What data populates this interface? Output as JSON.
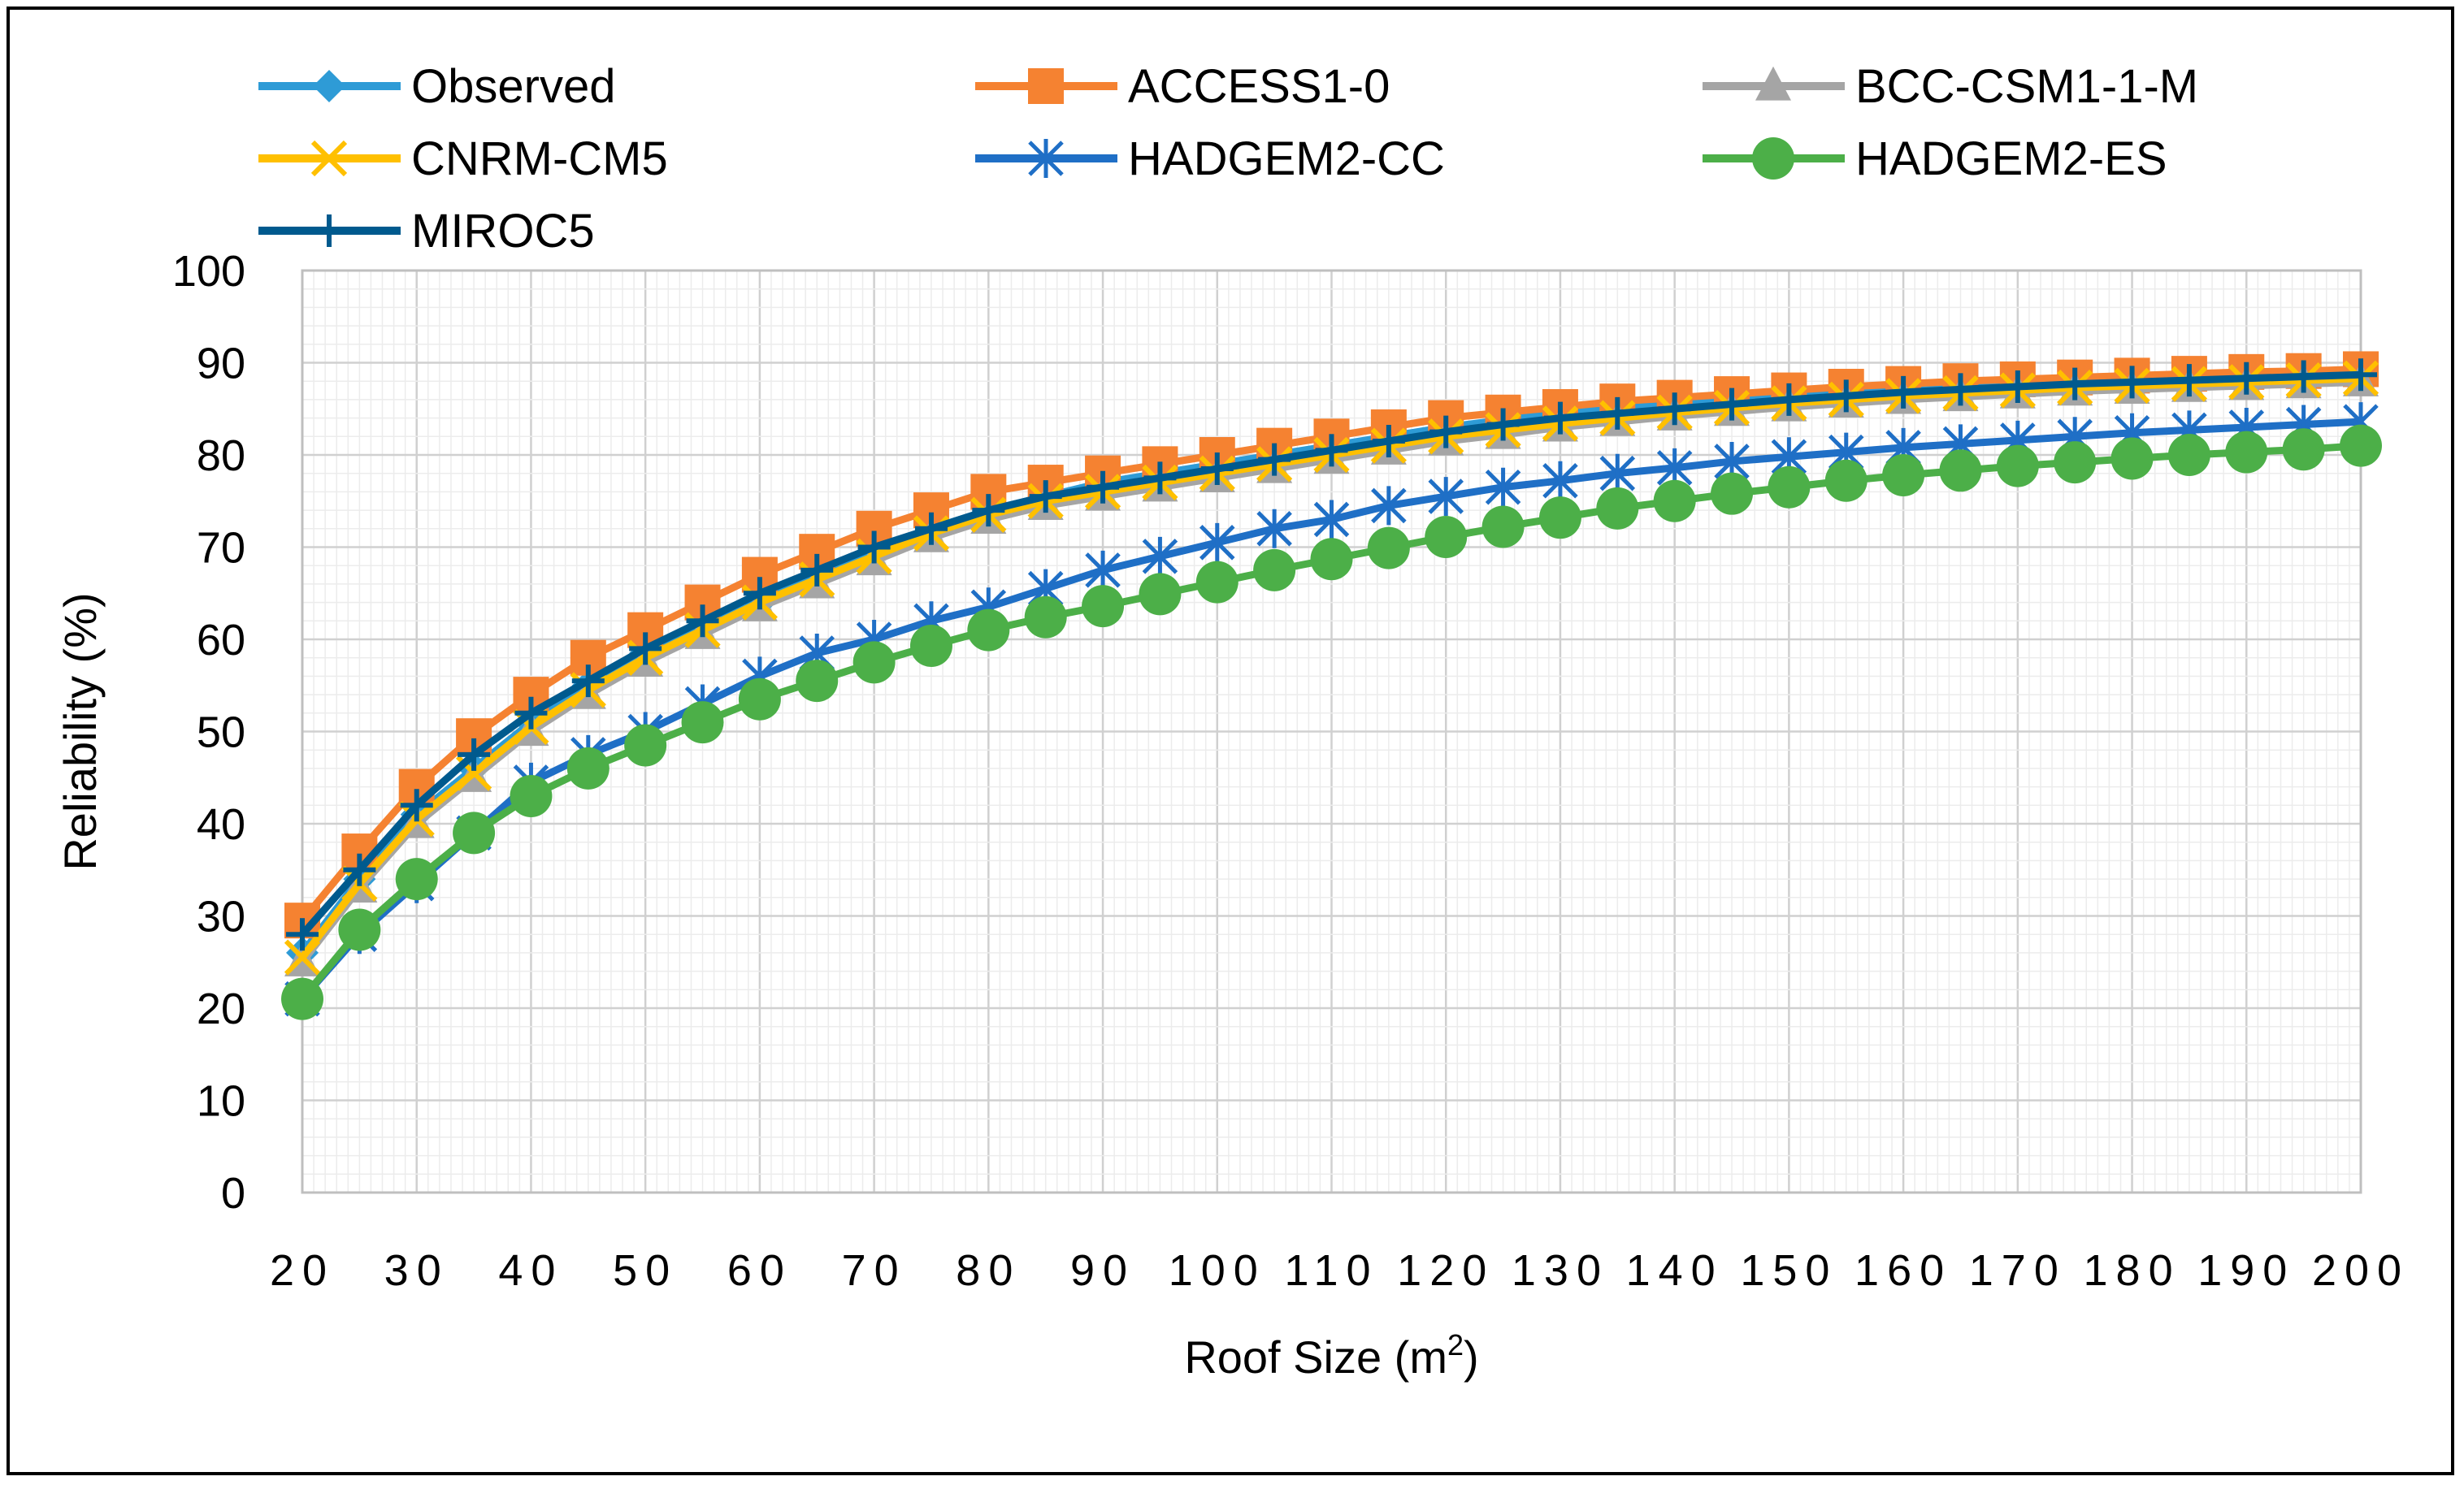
{
  "chart_data": {
    "type": "line",
    "title": "",
    "xlabel": "Roof Size (m",
    "xlabel_sup": "2",
    "xlabel_close": ")",
    "ylabel": "Reliability (%)",
    "xlim": [
      20,
      200
    ],
    "ylim": [
      0,
      100
    ],
    "yticks": [
      0,
      10,
      20,
      30,
      40,
      50,
      60,
      70,
      80,
      90,
      100
    ],
    "xticks": [
      20,
      30,
      40,
      50,
      60,
      70,
      80,
      90,
      100,
      110,
      120,
      130,
      140,
      150,
      160,
      170,
      180,
      190,
      200
    ],
    "grid": true,
    "legend_position": "top",
    "x": [
      20,
      25,
      30,
      35,
      40,
      45,
      50,
      55,
      60,
      65,
      70,
      75,
      80,
      85,
      90,
      95,
      100,
      105,
      110,
      115,
      120,
      125,
      130,
      135,
      140,
      145,
      150,
      155,
      160,
      165,
      170,
      175,
      180,
      185,
      190,
      195,
      200
    ],
    "series": [
      {
        "name": "Observed",
        "color": "#2E9BD6",
        "marker": "diamond",
        "values": [
          26,
          34,
          41,
          46,
          51,
          55,
          58.5,
          61.5,
          64,
          67,
          69.5,
          72,
          74,
          75.5,
          77,
          78,
          79,
          80,
          81,
          82,
          83,
          83.8,
          84.5,
          85,
          85.5,
          86,
          86.4,
          86.8,
          87.2,
          87.5,
          87.8,
          88,
          88.2,
          88.4,
          88.5,
          88.7,
          88.9
        ]
      },
      {
        "name": "ACCESS1-0",
        "color": "#F58231",
        "marker": "square",
        "values": [
          29.5,
          37,
          44,
          49.5,
          54,
          58,
          61,
          64,
          67,
          69.5,
          72,
          74,
          76,
          77,
          78,
          79,
          80,
          81,
          82,
          83,
          84,
          84.6,
          85.2,
          85.8,
          86.2,
          86.6,
          87,
          87.4,
          87.7,
          88,
          88.2,
          88.4,
          88.6,
          88.8,
          89,
          89.1,
          89.3
        ]
      },
      {
        "name": "BCC-CSM1-1-M",
        "color": "#A5A5A5",
        "marker": "triangle",
        "values": [
          25,
          33,
          40,
          45,
          50,
          54,
          57.5,
          60.5,
          63.5,
          66,
          68.5,
          71,
          73,
          74.5,
          75.5,
          76.5,
          77.5,
          78.5,
          79.5,
          80.5,
          81.5,
          82.2,
          83,
          83.6,
          84.2,
          84.7,
          85.2,
          85.6,
          86,
          86.3,
          86.6,
          86.9,
          87.1,
          87.3,
          87.5,
          87.7,
          87.9
        ]
      },
      {
        "name": "CNRM-CM5",
        "color": "#FFC000",
        "marker": "x",
        "values": [
          25.5,
          33.5,
          40.5,
          45.5,
          50.5,
          54.5,
          58,
          61,
          64,
          66.5,
          69,
          71.5,
          73.5,
          75,
          76,
          77,
          78,
          79,
          80,
          81,
          82,
          82.7,
          83.4,
          84,
          84.6,
          85.1,
          85.6,
          86,
          86.4,
          86.7,
          87,
          87.3,
          87.5,
          87.7,
          87.9,
          88.1,
          88.3
        ]
      },
      {
        "name": "HADGEM2-CC",
        "color": "#1F6FC6",
        "marker": "asterisk",
        "values": [
          21,
          28,
          33.5,
          39,
          44.5,
          47.5,
          50,
          53,
          56,
          58.5,
          60,
          62,
          63.5,
          65.5,
          67.5,
          69,
          70.5,
          72,
          73,
          74.5,
          75.5,
          76.5,
          77.2,
          78,
          78.6,
          79.3,
          79.8,
          80.3,
          80.8,
          81.2,
          81.6,
          82,
          82.4,
          82.7,
          83,
          83.3,
          83.6
        ]
      },
      {
        "name": "HADGEM2-ES",
        "color": "#4CAF48",
        "marker": "circle",
        "values": [
          21,
          28.5,
          34,
          39,
          43,
          46,
          48.5,
          51,
          53.5,
          55.5,
          57.5,
          59.3,
          61,
          62.4,
          63.6,
          64.9,
          66.2,
          67.5,
          68.7,
          69.9,
          71.1,
          72.2,
          73.2,
          74.2,
          75,
          75.8,
          76.5,
          77.2,
          77.8,
          78.3,
          78.8,
          79.2,
          79.6,
          80,
          80.3,
          80.6,
          81
        ]
      },
      {
        "name": "MIROC5",
        "color": "#005A8E",
        "marker": "plus",
        "values": [
          28,
          35,
          42,
          47.5,
          52,
          55.5,
          59,
          62,
          65,
          67.5,
          70,
          72,
          74,
          75.5,
          76.5,
          77.5,
          78.5,
          79.5,
          80.5,
          81.5,
          82.5,
          83.3,
          84,
          84.5,
          85,
          85.5,
          86,
          86.4,
          86.8,
          87.1,
          87.4,
          87.7,
          87.9,
          88.1,
          88.3,
          88.5,
          88.7
        ]
      }
    ]
  }
}
